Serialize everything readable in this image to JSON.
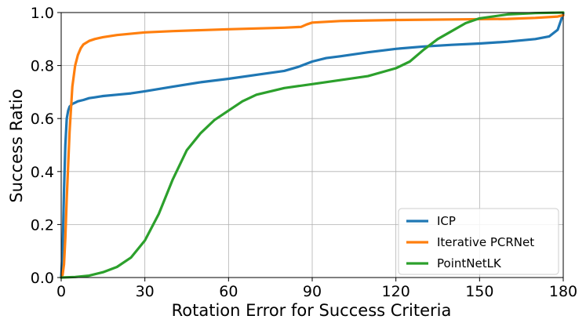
{
  "chart_data": {
    "type": "line",
    "title": "",
    "xlabel": "Rotation Error for Success Criteria",
    "ylabel": "Success Ratio",
    "xlim": [
      0,
      180
    ],
    "ylim": [
      0,
      1.0
    ],
    "xticks": [
      0,
      30,
      60,
      90,
      120,
      150,
      180
    ],
    "yticks": [
      0.0,
      0.2,
      0.4,
      0.6,
      0.8,
      1.0
    ],
    "xtick_labels": [
      "0",
      "30",
      "60",
      "90",
      "120",
      "150",
      "180"
    ],
    "ytick_labels": [
      "0.0",
      "0.2",
      "0.4",
      "0.6",
      "0.8",
      "1.0"
    ],
    "grid": true,
    "legend_position": "bottom-right",
    "series": [
      {
        "name": "ICP",
        "color": "#1f77b4",
        "x": [
          0,
          0.5,
          1,
          1.5,
          2,
          2.5,
          3,
          4,
          5,
          6,
          8,
          10,
          12,
          15,
          20,
          25,
          30,
          40,
          50,
          60,
          70,
          80,
          85,
          90,
          95,
          100,
          110,
          120,
          130,
          140,
          150,
          160,
          170,
          175,
          178,
          180
        ],
        "y": [
          0,
          0.1,
          0.33,
          0.5,
          0.6,
          0.63,
          0.645,
          0.655,
          0.66,
          0.665,
          0.67,
          0.677,
          0.68,
          0.685,
          0.69,
          0.695,
          0.703,
          0.72,
          0.737,
          0.75,
          0.765,
          0.78,
          0.795,
          0.815,
          0.828,
          0.835,
          0.85,
          0.863,
          0.872,
          0.878,
          0.883,
          0.89,
          0.9,
          0.91,
          0.935,
          0.995
        ]
      },
      {
        "name": "Iterative PCRNet",
        "color": "#ff7f0e",
        "x": [
          0,
          0.5,
          1,
          1.5,
          2,
          3,
          4,
          5,
          6,
          7,
          8,
          10,
          12,
          15,
          20,
          30,
          40,
          60,
          80,
          86,
          88,
          90,
          100,
          120,
          140,
          160,
          170,
          178,
          180
        ],
        "y": [
          0,
          0.01,
          0.05,
          0.15,
          0.3,
          0.55,
          0.72,
          0.8,
          0.84,
          0.865,
          0.88,
          0.893,
          0.9,
          0.907,
          0.915,
          0.925,
          0.93,
          0.937,
          0.943,
          0.946,
          0.955,
          0.962,
          0.968,
          0.972,
          0.974,
          0.976,
          0.98,
          0.985,
          0.99
        ]
      },
      {
        "name": "PointNetLK",
        "color": "#2ca02c",
        "x": [
          0,
          5,
          10,
          15,
          20,
          25,
          30,
          35,
          40,
          45,
          50,
          55,
          60,
          65,
          70,
          80,
          90,
          100,
          110,
          120,
          125,
          130,
          135,
          140,
          145,
          150,
          160,
          170,
          180
        ],
        "y": [
          0,
          0.002,
          0.007,
          0.02,
          0.04,
          0.075,
          0.14,
          0.24,
          0.37,
          0.48,
          0.545,
          0.595,
          0.63,
          0.665,
          0.69,
          0.715,
          0.73,
          0.745,
          0.76,
          0.79,
          0.815,
          0.86,
          0.9,
          0.93,
          0.96,
          0.978,
          0.993,
          0.998,
          1.0
        ]
      }
    ]
  }
}
